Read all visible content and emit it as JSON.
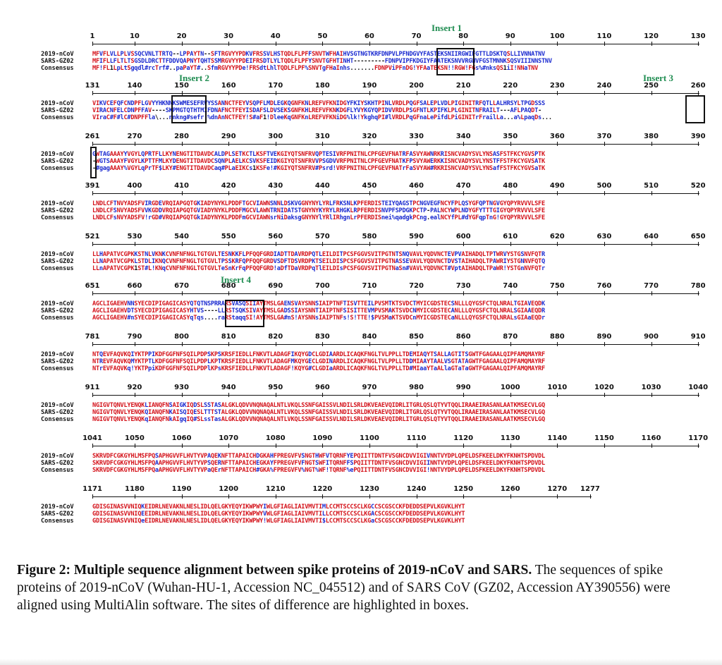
{
  "figure": {
    "row_labels": [
      "2019-nCoV",
      "SARS-GZ02",
      "Consensus"
    ],
    "inserts": [
      {
        "label": "Insert 1",
        "block": 0
      },
      {
        "label": "Insert 2",
        "block": 1
      },
      {
        "label": "Insert 3",
        "block": 1
      },
      {
        "label": "Insert 4",
        "block": 5
      }
    ],
    "blocks": [
      {
        "ticks": [
          "1",
          "10",
          "20",
          "30",
          "40",
          "50",
          "60",
          "70",
          "80",
          "90",
          "100",
          "110",
          "120",
          "130"
        ],
        "seq1": "MFVFLVLLPLVSSQCVNLTTRTQ--LPPAYTN--SFTRGVYYPDKVFRSSVLHSTQDLFLPFFSNVTWFHAIHVSGTNGTKRFDNPVLPFNDGVYFASTEKSNIIRGWIFGTTLDSKTQSLLIVNNATNV",
        "seq2": "MFIFLLFLTLTSGSDLDRCTTFDDVQAPNYTQHTSSMRGVYYPDEIFRSDTLYLTQDLFLPFYSNVTGFHTINHT---------FDNPVIPFKDGIYFAATEKSNVVRGWVFGSTMNNKSQSVIIINNSTNV",
        "cons": "MF!FL1LpLtSgqdl#rcTrf#..paPaYT#..SfmRGVYYPDe!FRSdtLhlTQDLFLPF%SNVTgFHaInhs.......FDNPViPFnDG!YFAaTEKSN!!RGW!FGs%#nksQS1iI!NNaTNV"
      },
      {
        "ticks": [
          "131",
          "140",
          "150",
          "160",
          "170",
          "180",
          "190",
          "200",
          "210",
          "220",
          "230",
          "240",
          "250",
          "260"
        ],
        "seq1": "VIKVCEFQFCNDPFLGVYYHKNNKSWMESEFRVYSSANNCTFEYVSQPFLMDLEGKQGNFKNLREFVFKNIDGYFKIYSKHTPINLVRDLPQGFSALEPLVDLPIGINITRFQTLLALHRSYLTPGDSSS",
        "seq2": "VIRACNFELCDNPFFAV----SKPMGTQTHTMIFDNAFNCTFEYISDAFSLDVSEKSGNFKHLREFVFKNKDGFLYVYKGYQPIDVVRDLPSGFNTLKPIFKLPLGINITNFRAILT---AFLPAQDT-",
        "cons": "VIraC#F#lC#DNPFFla\\...nnkng#sefr!%dnAnNCTFEY!S#aF1!DleeKqGNFKnLREFVFKNiDG%lk!YkghqPI#lVRDLPqGFnaLePifdLPiGINITrFrailLa...a%LpaqDs..."
      },
      {
        "ticks": [
          "261",
          "270",
          "280",
          "290",
          "300",
          "310",
          "320",
          "330",
          "340",
          "350",
          "360",
          "370",
          "380",
          "390"
        ],
        "seq1": "GWTAGAAAYYVGYLQPRTFLLKYNENGTITDAVDCALDPLSETKCTLKSFTVEKGIYQTSNFRVQPTESIVRFPNITNLCPFGEVFNATRFASVYAWNRKRISNCVADYSVLYNSASFSTFKCYGVSPTK",
        "seq2": "-WGTSAAAYFVGYLKPTTFMLKYDENGTITDAVDCSQNPLAELKCSVKSFEIDKGIYQTSNFRVVPSGDVVRFPNITNLCPFGEVFNATKFPSVYAWERKKISNCVADYSVLYNSTFFSTFKCYGVSATK",
        "cons": "-#gagAAAY%VGYLqPrTF$LKY#ENGTITDAVDCaq#PLaEIKCs1KSFe!#KGIYQTSNFRV#Psrd!VRFPNITNLCPFGEVFNATrFaSVYAW#RKRISNCVADYSVLYNSafFSTFKCYGVSaTK"
      },
      {
        "ticks": [
          "391",
          "400",
          "410",
          "420",
          "430",
          "440",
          "450",
          "460",
          "470",
          "480",
          "490",
          "500",
          "510",
          "520"
        ],
        "seq1": "LNDLCFTNVYADSFVIRGDEVRQIAPGQTGKIADYNYKLPDDFTGCVIAWNSNNLDSKVGGNYNYLYRLFRKSNLKPFERDISTEIYQAGSTPCNGVEGFNCYFPLQSYGFQPTNGVGYQPYRVVVLSFE",
        "seq2": "LNDLCFSNVYADSFVVKGDDVRQIAPGQTGVIADYNYKLPDDFMGCVLAWNTRNIDATSTGNYNYKYRYLRHGKLRPFERDISNVPFSPDGKPCTP-PALNCYWPLNDYGFYTTTGIGYQPYRVVVLSFE",
        "cons": "LNDLCFsNVYADSFV!rGD#VRQIAPGQTGkIADYNYKLPDDFmGCVIAWNsrNiDaksgGNYNYlYRlIRhgnLrPFERDISnei%qadgkPCng.ealNCYfPL#dYGFqpTnG!GYQPYRVVVLSFE"
      },
      {
        "ticks": [
          "521",
          "530",
          "540",
          "550",
          "560",
          "570",
          "580",
          "590",
          "600",
          "610",
          "620",
          "630",
          "640",
          "650"
        ],
        "seq1": "LLHAPATVCGPKKSTNLVKNKCVNFNFNGLTGTGVLTESNKKFLPFQQFGRDIADTTDAVRDPQTLEILDITPCSFGGVSVITPGTNTSNQVAVLYQDVNCTEVPVAIHADQLTPTWRVYSTGSNVFQTR",
        "seq2": "LLNAPATVCGPKLSTDLIKNQCVNFNFNGLTGTGVLTPSSKRFQPFQQFGRDVSDFTDSVRDPKTSEILDISPCSFGGVSVITPGTNASSEVAVLYQDVNCTDVSTAIHADQLTPAWRIYSTGNNVFQTQ",
        "cons": "LLnAPATVCGPK1ST#L!KNqCVNFNFNGLTGTGVLTeSnKrFqPFQQFGRD!aDfTDaVRDPqTlEILDIsPCSFGGVSVITPGTNaSn#VAVLYQDVNCT#VptAIHADQLTPaWR!YSTGnNVFQTr"
      },
      {
        "ticks": [
          "651",
          "660",
          "670",
          "680",
          "690",
          "700",
          "710",
          "720",
          "730",
          "740",
          "750",
          "760",
          "770",
          "780"
        ],
        "seq1": "AGCLIGAEHVNNSYECDIPIGAGICASYQTQTNSPRRARSVASQSIIAYTMSLGAENSVAYSNNSIAIPTNFTISVTTEILPVSMTKTSVDCTMYICGDSTECSNLLLQYGSFCTQLNRALTGIAVEQDK",
        "seq2": "AGCLIGAEHVDTSYECDIPIGAGICASYHTVS----LLRSTSQKSIVAYTMSLGADSSIAYSNNTIAIPTNFSISITTEVMPVSMAKTSVDCNMYICGDSTECANLLLQYGSFCTQLNRALSGIAAEQDR",
        "cons": "AGCLIGAEHV#nSYECDIPIGAGICASYqTqs....raRStaqqSI!AYTMSLGA#nS!AYSNNsIAIPTNFs!S!TTE!$PVSMaKTSVDCnMYICGDSTECaNLLLQYGSFCTQLNRALsGIAaEQDr"
      },
      {
        "ticks": [
          "781",
          "790",
          "800",
          "810",
          "820",
          "830",
          "840",
          "850",
          "860",
          "870",
          "880",
          "890",
          "900",
          "910"
        ],
        "seq1": "NTQEVFAQVKQIYKTPPIKDFGGFNFSQILPDPSKPSKRSFIEDLLFNKVTLADAGFIKQYGDCLGDIAARDLICAQKFNGLTVLPPLLTDEMIAQYTSALLAGTITSGWTFGAGAALQIPFAMQMAYRF",
        "seq2": "NTREVFAQVKQMYKTPTLKDFGGFNFSQILPDPLKPTKRSFIEDLLFNKVTLADAGFMKQYGECLGDINARDLICAQKFNGLTVLPPLLTDDMIAAYTAALVSGTATAGWTFGAGAALQIPFAMQMAYRF",
        "cons": "NTrEVFAQVKq!YKTPpiKDFGGFNFSQILPDPlKPsKRSFIEDLLFNKVTLADAGF!KQYG#CLGDIaARDLICAQKFNGLTVLPPLLTD#MIaaYTaALlaGTaTaGWTFGAGAALQIPFAMQMAYRF"
      },
      {
        "ticks": [
          "911",
          "920",
          "930",
          "940",
          "950",
          "960",
          "970",
          "980",
          "990",
          "1000",
          "1010",
          "1020",
          "1030",
          "1040"
        ],
        "seq1": "NGIGVTQNVLYENQKLIANQFNSAIGKIQDSLSSTASALGKLQDVVNQNAQALNTLVKQLSSNFGAISSVLNDILSRLDKVEAEVQIDRLITGRLQSLQTYVTQQLIRAAEIRASANLAATKMSECVLGQ",
        "seq2": "NGIGVTQNVLYENQKQIANQFNKAISQIQESLTTTSTALGKLQDVVNQNAQALNTLVKQLSSNFGAISSVLNDILSRLDKVEAEVQIDRLITGRLQSLQTYVTQQLIRAAEIRASANLAATKMSECVLGQ",
        "cons": "NGIGVTQNVLYENQKqIANQFNkAIgqIQ#SLssTasALGKLQDVVNQNAQALNTLVKQLSSNFGAISSVLNDILSRLDKVEAEVQIDRLITGRLQSLQTYVTQQLIRAAEIRASANLAATKMSECVLGQ"
      },
      {
        "ticks": [
          "1041",
          "1050",
          "1060",
          "1070",
          "1080",
          "1090",
          "1100",
          "1110",
          "1120",
          "1130",
          "1140",
          "1150",
          "1160",
          "1170"
        ],
        "seq1": "SKRVDFCGKGYHLMSFPQSAPHGVVFLHVTYVPAQEKNFTTAPAICHDGKAHFPREGVFVSNGTHWFVTQRNFYEPQIITTDNTFVSGNCDVVIGIVNNTVYDPLQPELDSFKEELDKYFKNHTSPDVDL",
        "seq2": "SKRVDFCGKGYHLMSFPQAAPHGVVFLHVTYVPSQERNFTTAPAICHEGKAYFPREGVFVFNGTSWFITQRNFFSPQIITTDNTFVSGNCDVVIGIINNTVYDPLQPELDSFKEELDKYFKNHTSPDVDL",
        "cons": "SKRVDFCGKGYHLMSFPQaAPHGVVFLHVTYVPaQErNFTTAPAICH#GKA%FPREGVFV%NGT%WF!TQRNF%ePQIITTDNTFVSGNCDVVIGI!NNTVYDPLQPELDSFKEELDKYFKNHTSPDVDL"
      },
      {
        "ticks": [
          "1171",
          "1180",
          "1190",
          "1200",
          "1210",
          "1220",
          "1230",
          "1240",
          "1250",
          "1260",
          "1270",
          "1277"
        ],
        "seq1": "GDISGINASVVNIQKEIDRLNEVAKNLNESLIDLQELGKYEQYIKWPWYIWLGFIAGLIAIVMVTIMLCCMTSCCSCLKGCCSCGSCCKFDEDDSEPVLKGVKLHYT",
        "seq2": "GDISGINASVVNIQEEIDRLNEVAKNLNESLIDLQELGKYEQYIKWPWYVWLGFIAGLIAIVMVTILLCCMTSCCSCLKGACSCGSCCKFDEDDSEPVLKGVKLHYT",
        "cons": "GDISGINASVVNIQeEIDRLNEVAKNLNESLIDLQELGKYEQYIKWPWY!WLGFIAGLIAIVMVTI$LCCMTSCCSCLKGaCSCGSCCKFDEDDSEPVLKGVKLHYT"
      }
    ]
  },
  "caption": {
    "bold": "Figure 2: Multiple sequence alignment between spike proteins of 2019-nCoV and SARS.",
    "text": " The sequences of spike proteins of 2019-nCoV (Wuhan-HU-1, Accession NC_045512) and of SARS CoV (GZ02, Accession AY390556) were aligned using MultiAlin software. The sites of difference are highlighted in  boxes."
  }
}
